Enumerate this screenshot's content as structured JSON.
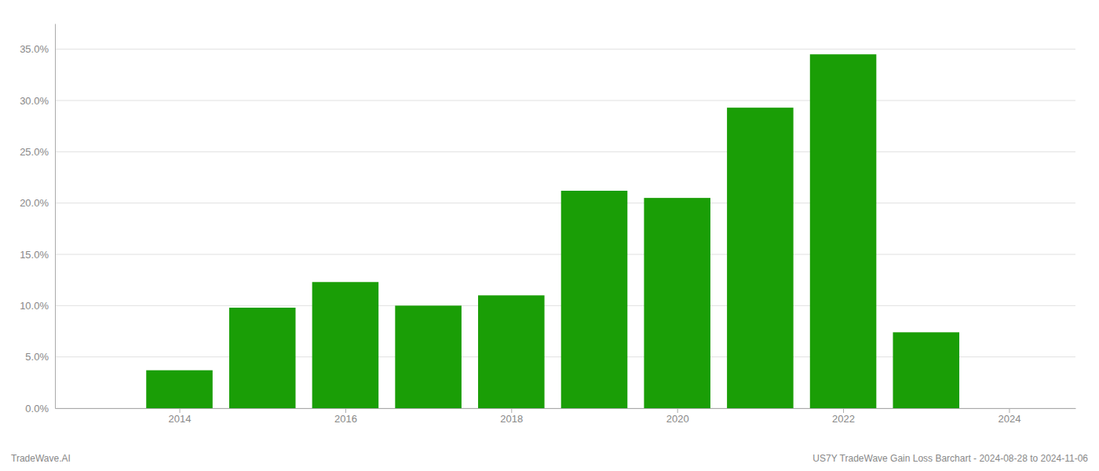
{
  "chart_data": {
    "type": "bar",
    "x": [
      2013,
      2014,
      2015,
      2016,
      2017,
      2018,
      2019,
      2020,
      2021,
      2022,
      2023,
      2024
    ],
    "values": [
      0.0,
      0.037,
      0.098,
      0.123,
      0.1,
      0.11,
      0.212,
      0.205,
      0.293,
      0.345,
      0.074,
      0.0
    ],
    "color": "#1a9e06",
    "xlim": [
      2012.5,
      2024.8
    ],
    "xticks": [
      2014,
      2016,
      2018,
      2020,
      2022,
      2024
    ],
    "ylim": [
      0,
      0.375
    ],
    "yticks": [
      {
        "value": 0,
        "label": "0.0%"
      },
      {
        "value": 0.05,
        "label": "5.0%"
      },
      {
        "value": 0.1,
        "label": "10.0%"
      },
      {
        "value": 0.15,
        "label": "15.0%"
      },
      {
        "value": 0.2,
        "label": "20.0%"
      },
      {
        "value": 0.25,
        "label": "25.0%"
      },
      {
        "value": 0.3,
        "label": "30.0%"
      },
      {
        "value": 0.35,
        "label": "35.0%"
      }
    ],
    "grid": true,
    "annotations": [
      "TradeWave.AI",
      "US7Y TradeWave Gain Loss Barchart - 2024-08-28 to 2024-11-06"
    ]
  }
}
